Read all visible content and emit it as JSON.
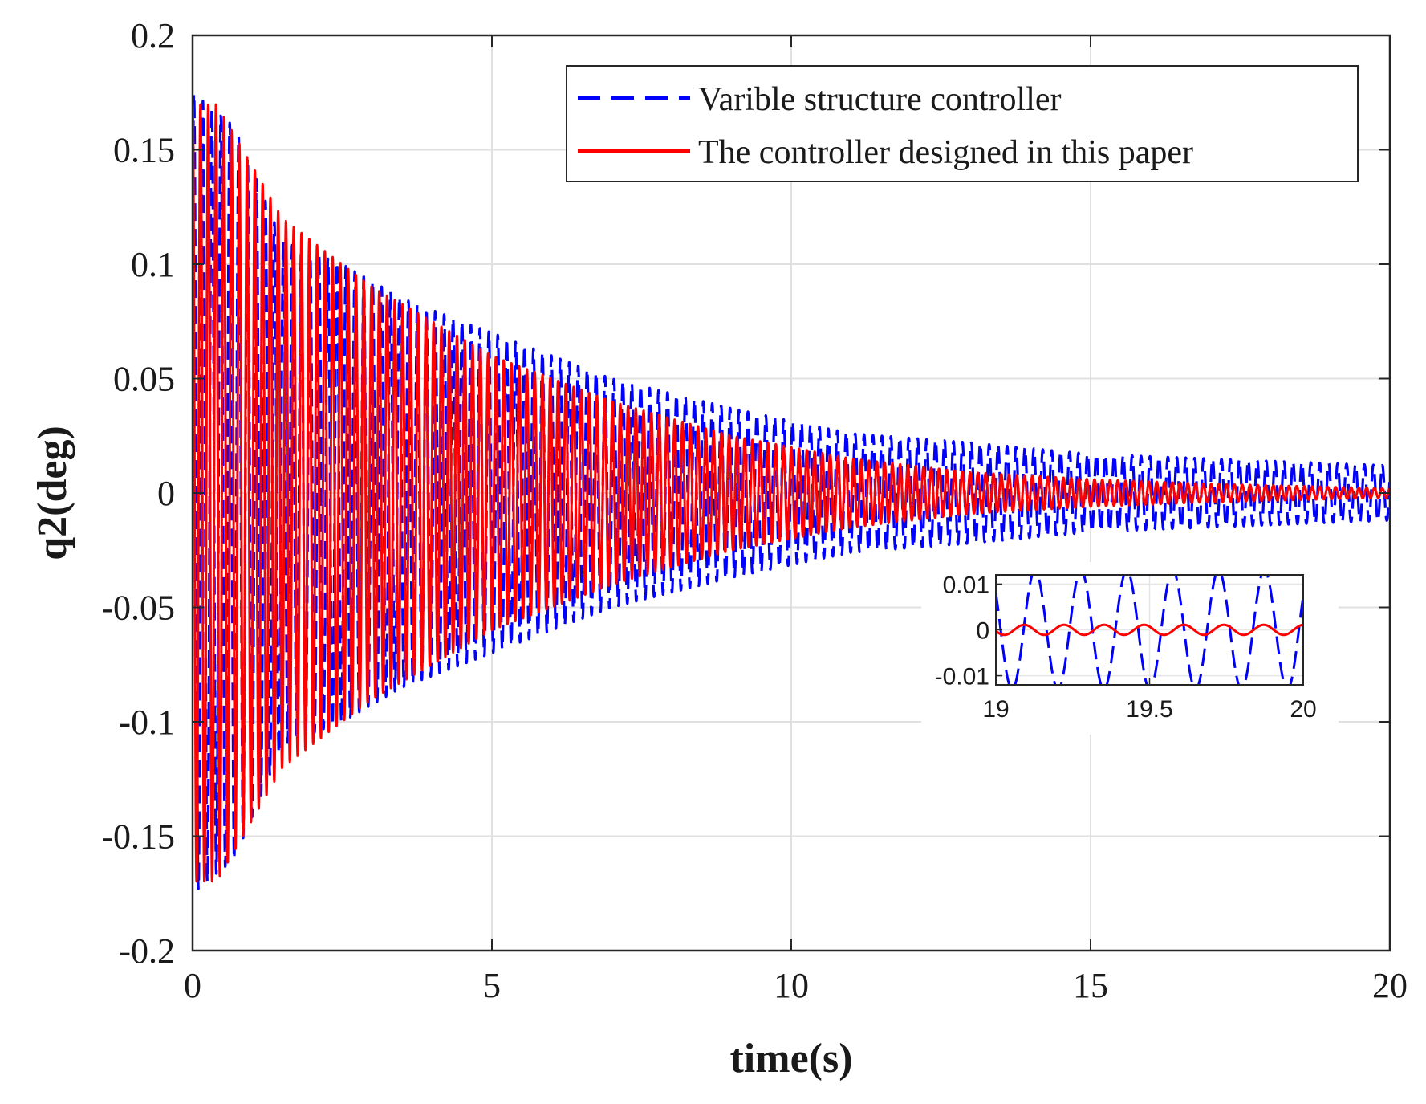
{
  "chart_data": {
    "type": "line",
    "xlabel": "time(s)",
    "ylabel": "q2(deg)",
    "xlim": [
      0,
      20
    ],
    "ylim": [
      -0.2,
      0.2
    ],
    "grid": true,
    "xticks": [
      0,
      5,
      10,
      15,
      20
    ],
    "xtick_labels": [
      "0",
      "5",
      "10",
      "15",
      "20"
    ],
    "yticks": [
      0.2,
      0.15,
      0.1,
      0.05,
      0,
      -0.05,
      -0.1,
      -0.15,
      -0.2
    ],
    "ytick_labels": [
      "0.2",
      "0.15",
      "0.1",
      "0.05",
      "0",
      "-0.05",
      "-0.1",
      "-0.15",
      "-0.2"
    ],
    "legend_position": "top-right",
    "series": [
      {
        "name": "Varible structure controller",
        "style": "dashed",
        "color": "#0000ff",
        "envelope_t": [
          0,
          0.7,
          1.5,
          2.5,
          3.5,
          5,
          7,
          9,
          11,
          13,
          15,
          17,
          20
        ],
        "envelope_amp": [
          0.175,
          0.16,
          0.11,
          0.1,
          0.085,
          0.07,
          0.05,
          0.037,
          0.026,
          0.022,
          0.017,
          0.015,
          0.012
        ],
        "freq_hz": 6.7
      },
      {
        "name": "The controller designed in this paper",
        "style": "solid",
        "color": "#ff0000",
        "envelope_t": [
          0,
          0.4,
          1.5,
          3,
          5,
          7,
          9,
          11,
          13,
          15,
          17,
          20
        ],
        "envelope_amp": [
          0.17,
          0.17,
          0.12,
          0.09,
          0.06,
          0.04,
          0.025,
          0.015,
          0.009,
          0.006,
          0.004,
          0.002
        ],
        "freq_hz": 7.7
      }
    ],
    "inset": {
      "xlim": [
        19,
        20
      ],
      "ylim": [
        -0.012,
        0.012
      ],
      "xticks": [
        19,
        19.5,
        20
      ],
      "xtick_labels": [
        "19",
        "19.5",
        "20"
      ],
      "yticks": [
        0.01,
        0,
        -0.01
      ],
      "ytick_labels": [
        "0.01",
        "0",
        "-0.01"
      ],
      "series_amplitudes": [
        0.013,
        0.0011
      ],
      "series_freq_hz": [
        6.7,
        7.7
      ]
    }
  }
}
